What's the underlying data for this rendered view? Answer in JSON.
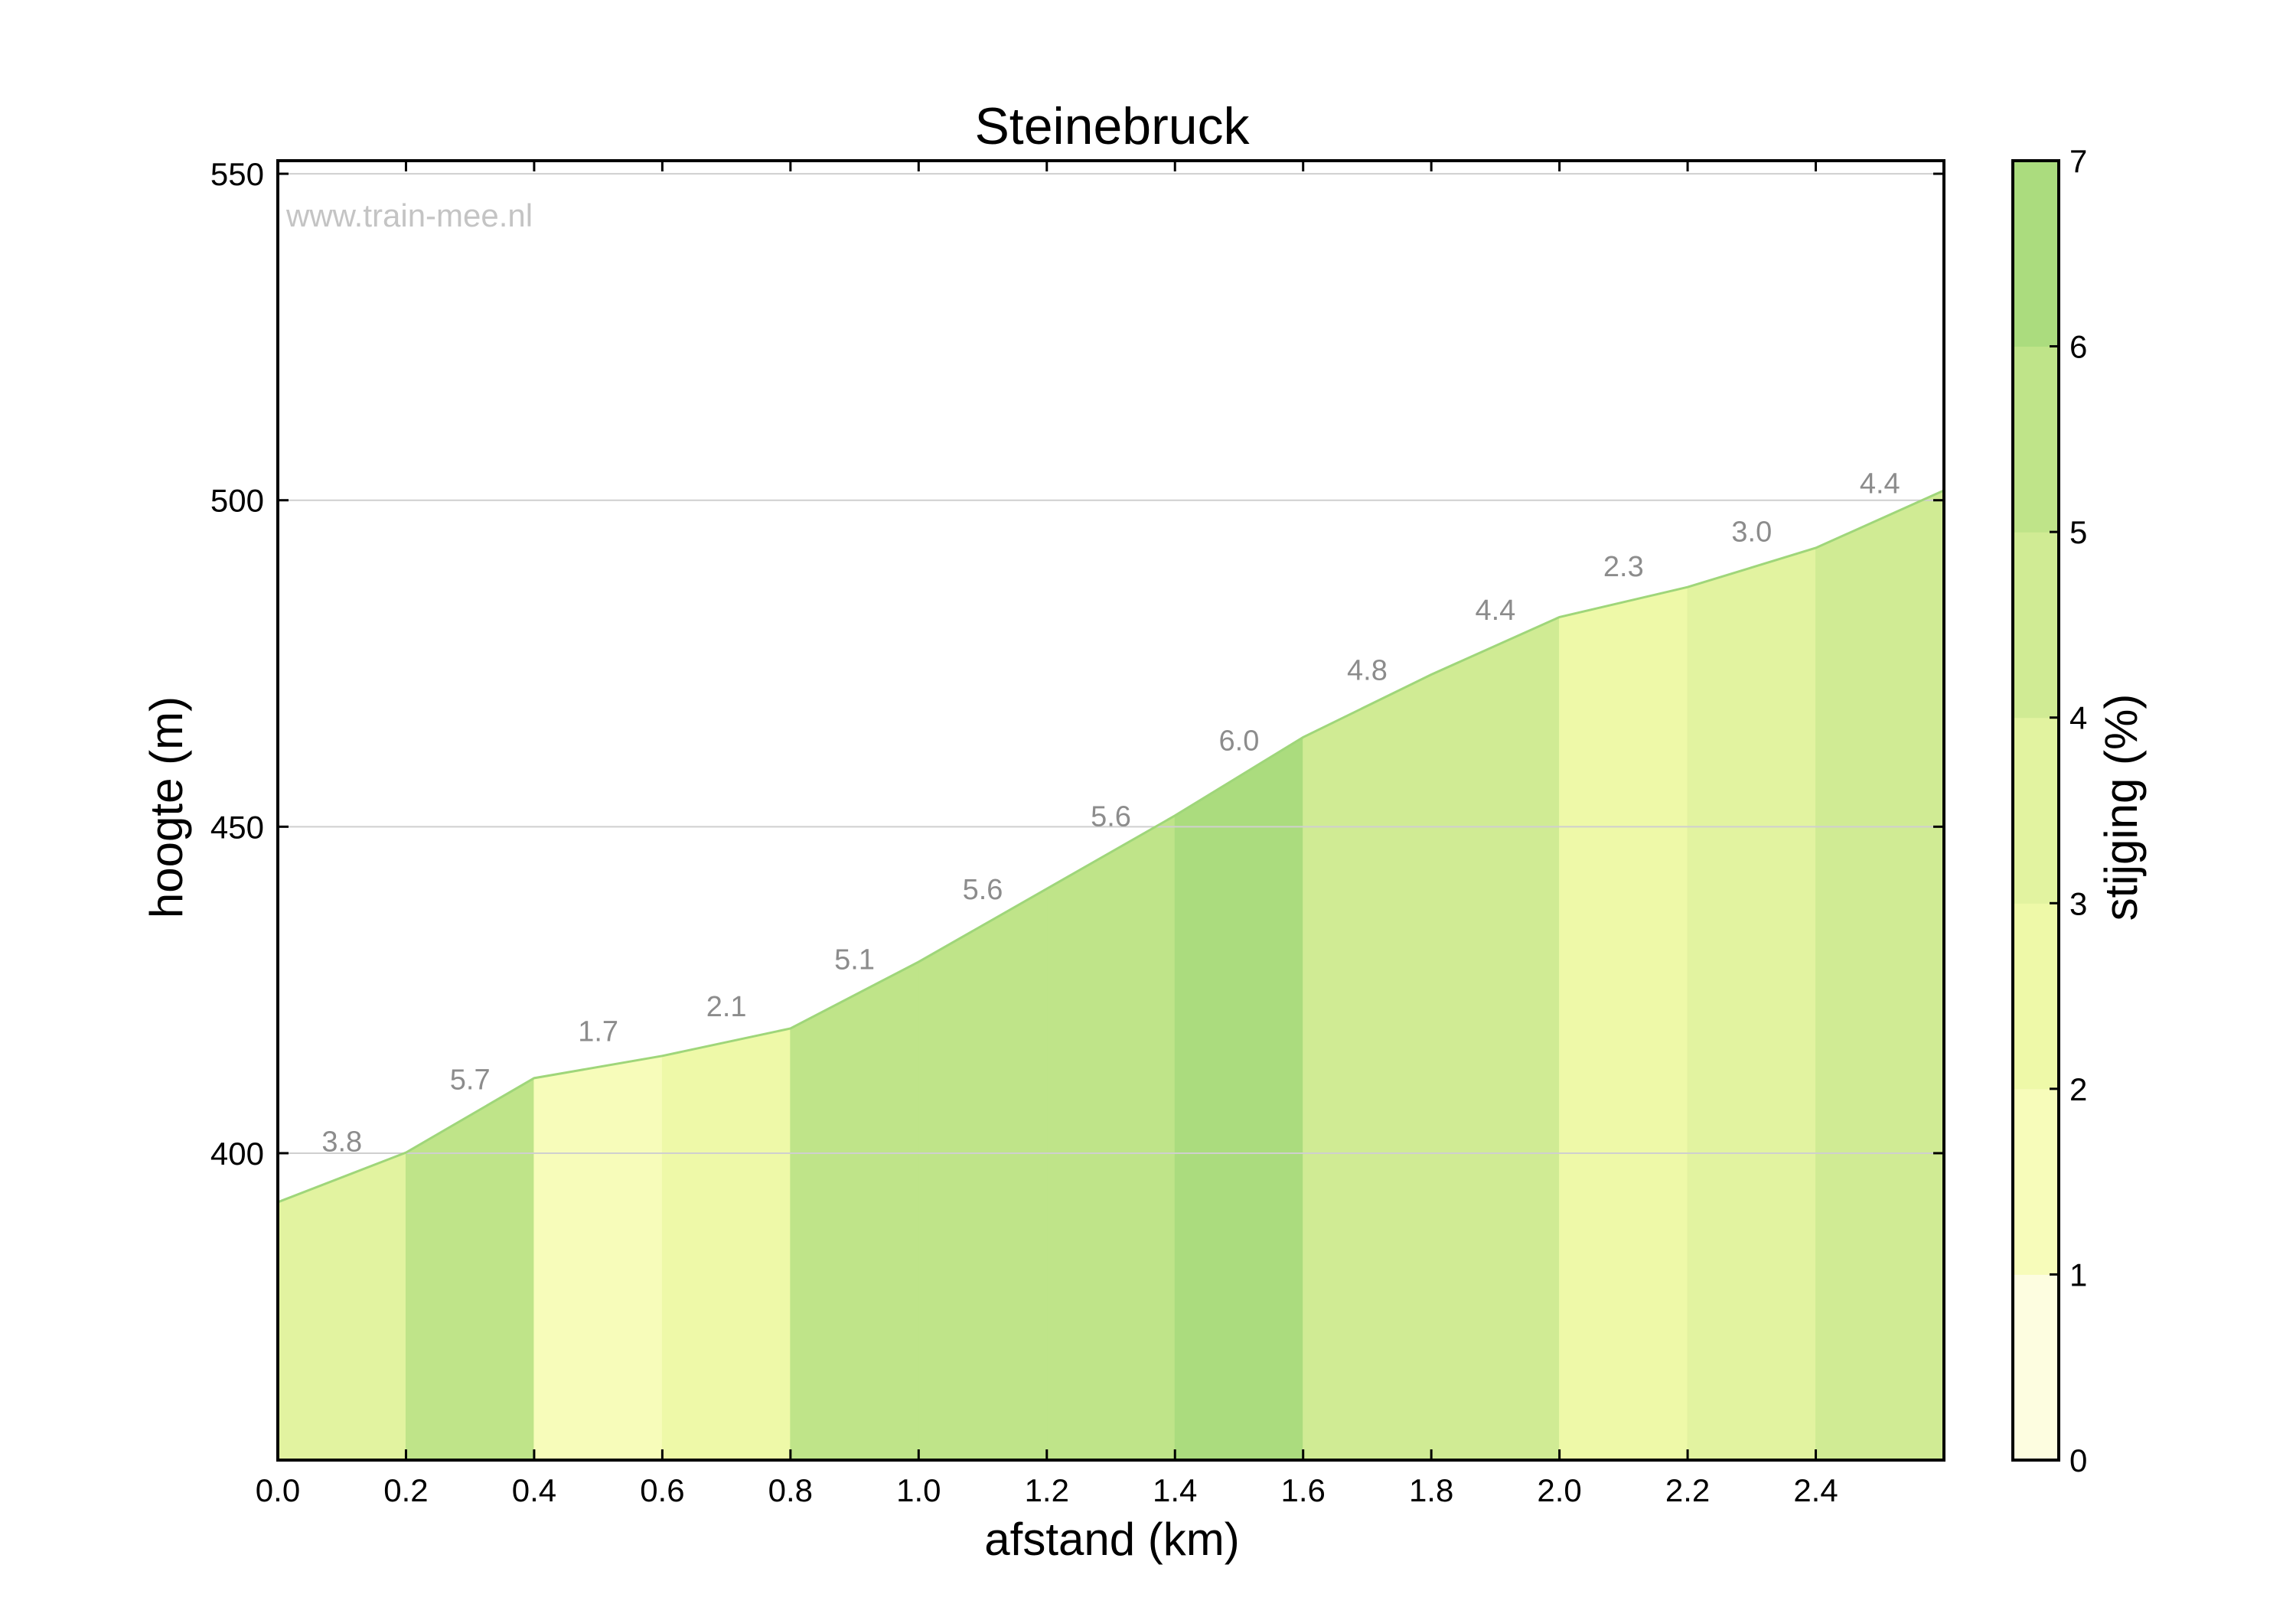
{
  "watermark": "www.train-mee.nl",
  "chart_data": {
    "type": "area",
    "title": "Steinebruck",
    "xlabel": "afstand (km)",
    "ylabel": "hoogte (m)",
    "colorbar_label": "stijging (%)",
    "xlim": [
      0.0,
      2.6
    ],
    "ylim": [
      353,
      552
    ],
    "x_ticks": [
      "0.0",
      "0.2",
      "0.4",
      "0.6",
      "0.8",
      "1.0",
      "1.2",
      "1.4",
      "1.6",
      "1.8",
      "2.0",
      "2.2",
      "2.4"
    ],
    "y_ticks": [
      "400",
      "450",
      "500",
      "550"
    ],
    "colorbar_ticks": [
      "0",
      "1",
      "2",
      "3",
      "4",
      "5",
      "6",
      "7"
    ],
    "grid": "horizontal",
    "x": [
      0.0,
      0.2,
      0.4,
      0.6,
      0.8,
      1.0,
      1.2,
      1.4,
      1.6,
      1.8,
      2.0,
      2.2,
      2.4,
      2.6
    ],
    "elevation": [
      392.5,
      400.1,
      411.5,
      414.9,
      419.1,
      429.3,
      440.5,
      451.7,
      463.7,
      473.3,
      482.1,
      486.7,
      492.7,
      501.5
    ],
    "segments": [
      {
        "x_start": 0.0,
        "x_end": 0.2,
        "gradient": "3.8"
      },
      {
        "x_start": 0.2,
        "x_end": 0.4,
        "gradient": "5.7"
      },
      {
        "x_start": 0.4,
        "x_end": 0.6,
        "gradient": "1.7"
      },
      {
        "x_start": 0.6,
        "x_end": 0.8,
        "gradient": "2.1"
      },
      {
        "x_start": 0.8,
        "x_end": 1.0,
        "gradient": "5.1"
      },
      {
        "x_start": 1.0,
        "x_end": 1.2,
        "gradient": "5.6"
      },
      {
        "x_start": 1.2,
        "x_end": 1.4,
        "gradient": "5.6"
      },
      {
        "x_start": 1.4,
        "x_end": 1.6,
        "gradient": "6.0"
      },
      {
        "x_start": 1.6,
        "x_end": 1.8,
        "gradient": "4.8"
      },
      {
        "x_start": 1.8,
        "x_end": 2.0,
        "gradient": "4.4"
      },
      {
        "x_start": 2.0,
        "x_end": 2.2,
        "gradient": "2.3"
      },
      {
        "x_start": 2.2,
        "x_end": 2.4,
        "gradient": "3.0"
      },
      {
        "x_start": 2.4,
        "x_end": 2.6,
        "gradient": "4.4"
      }
    ],
    "color_scale": [
      "#fdfde0",
      "#f7fcba",
      "#eef9a8",
      "#e2f3a0",
      "#d0eb94",
      "#bfe489",
      "#abdc7e"
    ],
    "outline_color": "#9fd67a"
  }
}
